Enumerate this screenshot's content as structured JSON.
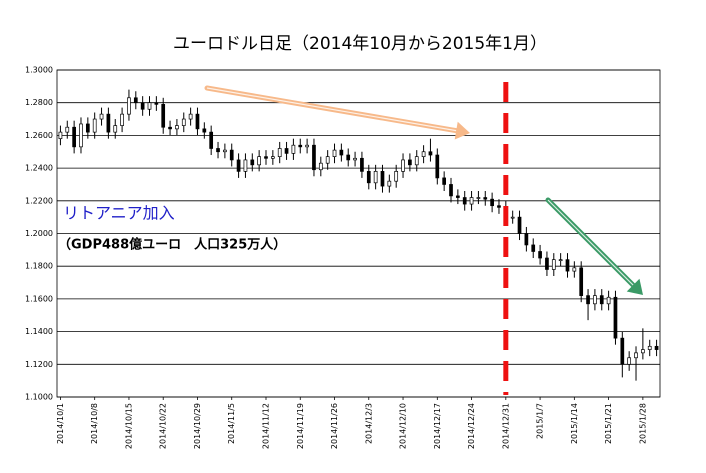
{
  "chart_data": {
    "type": "candlestick",
    "title": "ユーロドル日足（2014年10月から2015年1月）",
    "annotations": [
      "リトアニア加入",
      "（GDP488億ユーロ　人口325万人）"
    ],
    "categories": [
      "2014/10/1",
      null,
      null,
      null,
      null,
      "2014/10/8",
      null,
      null,
      null,
      null,
      "2014/10/15",
      null,
      null,
      null,
      null,
      "2014/10/22",
      null,
      null,
      null,
      null,
      "2014/10/29",
      null,
      null,
      null,
      null,
      "2014/11/5",
      null,
      null,
      null,
      null,
      "2014/11/12",
      null,
      null,
      null,
      null,
      "2014/11/19",
      null,
      null,
      null,
      null,
      "2014/11/26",
      null,
      null,
      null,
      null,
      "2014/12/3",
      null,
      null,
      null,
      null,
      "2014/12/10",
      null,
      null,
      null,
      null,
      "2014/12/17",
      null,
      null,
      null,
      null,
      "2014/12/24",
      null,
      null,
      null,
      null,
      "2014/12/31",
      null,
      null,
      null,
      null,
      "2015/1/7",
      null,
      null,
      null,
      null,
      "2015/1/14",
      null,
      null,
      null,
      null,
      "2015/1/21",
      null,
      null,
      null,
      null,
      "2015/1/28",
      null,
      null
    ],
    "open": [
      1.258,
      1.262,
      1.265,
      1.253,
      1.267,
      1.262,
      1.27,
      1.273,
      1.262,
      1.266,
      1.273,
      1.283,
      1.28,
      1.276,
      1.28,
      1.279,
      1.265,
      1.264,
      1.266,
      1.27,
      1.273,
      1.264,
      1.262,
      1.252,
      1.25,
      1.251,
      1.245,
      1.238,
      1.245,
      1.242,
      1.247,
      1.246,
      1.247,
      1.252,
      1.249,
      1.254,
      1.253,
      1.254,
      1.239,
      1.243,
      1.247,
      1.251,
      1.248,
      1.245,
      1.246,
      1.238,
      1.231,
      1.238,
      1.229,
      1.232,
      1.238,
      1.245,
      1.242,
      1.247,
      1.25,
      1.248,
      1.234,
      1.23,
      1.223,
      1.222,
      1.218,
      1.222,
      1.222,
      1.221,
      1.217,
      1.216,
      1.21,
      1.21,
      1.2,
      1.193,
      1.189,
      1.185,
      1.178,
      1.184,
      1.184,
      1.177,
      1.179,
      1.162,
      1.157,
      1.162,
      1.157,
      1.161,
      1.136,
      1.12,
      1.124,
      1.127,
      1.129,
      1.131
    ],
    "high": [
      1.266,
      1.269,
      1.269,
      1.271,
      1.271,
      1.274,
      1.277,
      1.277,
      1.27,
      1.277,
      1.288,
      1.287,
      1.284,
      1.284,
      1.284,
      1.283,
      1.269,
      1.27,
      1.274,
      1.277,
      1.277,
      1.268,
      1.266,
      1.256,
      1.255,
      1.255,
      1.249,
      1.249,
      1.249,
      1.251,
      1.251,
      1.251,
      1.256,
      1.256,
      1.258,
      1.258,
      1.258,
      1.258,
      1.247,
      1.251,
      1.255,
      1.255,
      1.252,
      1.25,
      1.25,
      1.242,
      1.242,
      1.242,
      1.236,
      1.242,
      1.249,
      1.249,
      1.251,
      1.254,
      1.258,
      1.252,
      1.238,
      1.234,
      1.227,
      1.226,
      1.226,
      1.226,
      1.226,
      1.225,
      1.221,
      1.22,
      1.214,
      1.214,
      1.204,
      1.197,
      1.193,
      1.189,
      1.188,
      1.188,
      1.188,
      1.183,
      1.183,
      1.166,
      1.166,
      1.166,
      1.165,
      1.165,
      1.14,
      1.128,
      1.131,
      1.142,
      1.135,
      1.135
    ],
    "low": [
      1.254,
      1.258,
      1.249,
      1.249,
      1.258,
      1.258,
      1.266,
      1.258,
      1.258,
      1.262,
      1.269,
      1.276,
      1.272,
      1.272,
      1.275,
      1.261,
      1.26,
      1.26,
      1.262,
      1.266,
      1.26,
      1.258,
      1.248,
      1.246,
      1.246,
      1.241,
      1.234,
      1.234,
      1.238,
      1.238,
      1.242,
      1.242,
      1.243,
      1.245,
      1.245,
      1.249,
      1.249,
      1.235,
      1.235,
      1.239,
      1.243,
      1.244,
      1.241,
      1.241,
      1.234,
      1.227,
      1.227,
      1.225,
      1.225,
      1.228,
      1.234,
      1.238,
      1.238,
      1.243,
      1.244,
      1.23,
      1.226,
      1.219,
      1.218,
      1.214,
      1.214,
      1.218,
      1.217,
      1.213,
      1.212,
      1.206,
      1.206,
      1.196,
      1.189,
      1.185,
      1.181,
      1.174,
      1.174,
      1.18,
      1.173,
      1.173,
      1.158,
      1.147,
      1.153,
      1.153,
      1.153,
      1.132,
      1.112,
      1.116,
      1.11,
      1.123,
      1.125,
      1.125
    ],
    "close": [
      1.262,
      1.265,
      1.253,
      1.267,
      1.262,
      1.27,
      1.273,
      1.262,
      1.266,
      1.273,
      1.283,
      1.28,
      1.276,
      1.28,
      1.279,
      1.265,
      1.264,
      1.266,
      1.27,
      1.273,
      1.264,
      1.262,
      1.252,
      1.25,
      1.251,
      1.245,
      1.238,
      1.245,
      1.242,
      1.247,
      1.246,
      1.247,
      1.252,
      1.249,
      1.254,
      1.253,
      1.254,
      1.239,
      1.243,
      1.247,
      1.251,
      1.248,
      1.245,
      1.246,
      1.238,
      1.231,
      1.238,
      1.229,
      1.232,
      1.238,
      1.245,
      1.242,
      1.247,
      1.25,
      1.248,
      1.234,
      1.23,
      1.223,
      1.222,
      1.218,
      1.222,
      1.222,
      1.221,
      1.217,
      1.216,
      1.21,
      1.21,
      1.2,
      1.193,
      1.189,
      1.185,
      1.178,
      1.184,
      1.184,
      1.177,
      1.179,
      1.162,
      1.157,
      1.162,
      1.157,
      1.161,
      1.136,
      1.12,
      1.124,
      1.127,
      1.129,
      1.131,
      1.129
    ],
    "ylim": [
      1.1,
      1.3
    ],
    "yticks": [
      {
        "value": 1.1,
        "label": "1.1000"
      },
      {
        "value": 1.12,
        "label": "1.1200"
      },
      {
        "value": 1.14,
        "label": "1.1400"
      },
      {
        "value": 1.16,
        "label": "1.1600"
      },
      {
        "value": 1.18,
        "label": "1.1800"
      },
      {
        "value": 1.2,
        "label": "1.2000"
      },
      {
        "value": 1.22,
        "label": "1.2200"
      },
      {
        "value": 1.24,
        "label": "1.2400"
      },
      {
        "value": 1.26,
        "label": "1.2600"
      },
      {
        "value": 1.28,
        "label": "1.2800"
      },
      {
        "value": 1.3,
        "label": "1.3000"
      }
    ],
    "grid": true,
    "color": "#000000"
  }
}
